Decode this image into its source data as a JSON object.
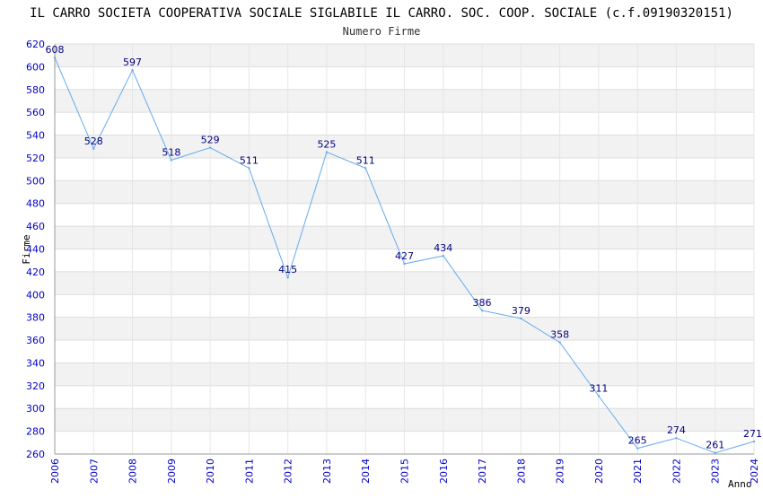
{
  "chart_data": {
    "type": "line",
    "title": "IL CARRO SOCIETA COOPERATIVA SOCIALE SIGLABILE IL CARRO. SOC. COOP. SOCIALE (c.f.09190320151)",
    "subtitle": "Numero Firme",
    "xlabel": "Anno",
    "ylabel": "Firme",
    "ylim": [
      260,
      620
    ],
    "yticks": [
      260,
      280,
      300,
      320,
      340,
      360,
      380,
      400,
      420,
      440,
      460,
      480,
      500,
      520,
      540,
      560,
      580,
      600,
      620
    ],
    "grid": true,
    "x": [
      "2006",
      "2007",
      "2008",
      "2009",
      "2010",
      "2011",
      "2012",
      "2013",
      "2014",
      "2015",
      "2016",
      "2017",
      "2018",
      "2019",
      "2020",
      "2021",
      "2022",
      "2023",
      "2024"
    ],
    "series": [
      {
        "values": [
          608,
          528,
          597,
          518,
          529,
          511,
          415,
          525,
          511,
          427,
          434,
          386,
          379,
          358,
          311,
          265,
          274,
          261,
          271
        ]
      }
    ],
    "colors": {
      "line": "#66aaee",
      "band": "#f2f2f2",
      "grid": "#dddddd",
      "tick": "#0000cc",
      "label": "#000080"
    }
  }
}
